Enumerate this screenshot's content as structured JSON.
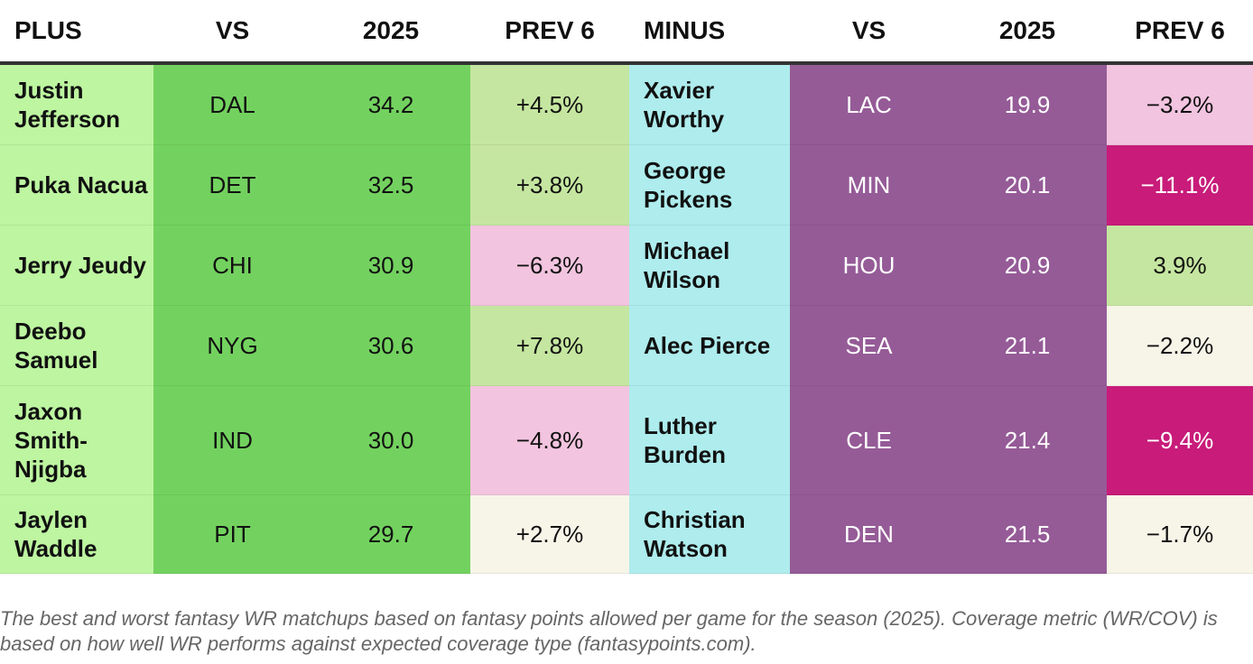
{
  "headers": {
    "plus": "PLUS",
    "vs_left": "VS",
    "season_left": "2025",
    "prev_left": "PREV 6",
    "minus": "MINUS",
    "vs_right": "VS",
    "season_right": "2025",
    "prev_right": "PREV 6"
  },
  "rows": [
    {
      "plus": {
        "player": "Justin Jefferson",
        "opponent": "DAL",
        "season": "34.2",
        "prev6": "+4.5%",
        "prev6_color": "#c5e6a0"
      },
      "minus": {
        "player": "Xavier Worthy",
        "opponent": "LAC",
        "season": "19.9",
        "prev6": "−3.2%",
        "prev6_color": "#f2c4df",
        "prev6_text_color": "#111111"
      }
    },
    {
      "plus": {
        "player": "Puka Nacua",
        "opponent": "DET",
        "season": "32.5",
        "prev6": "+3.8%",
        "prev6_color": "#c5e6a0"
      },
      "minus": {
        "player": "George Pickens",
        "opponent": "MIN",
        "season": "20.1",
        "prev6": "−11.1%",
        "prev6_color": "#c81b7a",
        "prev6_text_color": "#ffffff"
      }
    },
    {
      "plus": {
        "player": "Jerry Jeudy",
        "opponent": "CHI",
        "season": "30.9",
        "prev6": "−6.3%",
        "prev6_color": "#f2c4df"
      },
      "minus": {
        "player": "Michael Wilson",
        "opponent": "HOU",
        "season": "20.9",
        "prev6": "3.9%",
        "prev6_color": "#c5e6a0",
        "prev6_text_color": "#111111"
      }
    },
    {
      "plus": {
        "player": "Deebo Samuel",
        "opponent": "NYG",
        "season": "30.6",
        "prev6": "+7.8%",
        "prev6_color": "#c5e6a0"
      },
      "minus": {
        "player": "Alec Pierce",
        "opponent": "SEA",
        "season": "21.1",
        "prev6": "−2.2%",
        "prev6_color": "#f7f4e8",
        "prev6_text_color": "#111111"
      }
    },
    {
      "plus": {
        "player": "Jaxon Smith-Njigba",
        "opponent": "IND",
        "season": "30.0",
        "prev6": "−4.8%",
        "prev6_color": "#f2c4df"
      },
      "minus": {
        "player": "Luther Burden",
        "opponent": "CLE",
        "season": "21.4",
        "prev6": "−9.4%",
        "prev6_color": "#c81b7a",
        "prev6_text_color": "#ffffff"
      }
    },
    {
      "plus": {
        "player": "Jaylen Waddle",
        "opponent": "PIT",
        "season": "29.7",
        "prev6": "+2.7%",
        "prev6_color": "#f7f4e8"
      },
      "minus": {
        "player": "Christian Watson",
        "opponent": "DEN",
        "season": "21.5",
        "prev6": "−1.7%",
        "prev6_color": "#f7f4e8",
        "prev6_text_color": "#111111"
      }
    }
  ],
  "note": "The best and worst fantasy WR matchups based on fantasy points allowed per game for the season (2025). Coverage metric (WR/COV) is based on how well WR performs against expected coverage type (fantasypoints.com)."
}
